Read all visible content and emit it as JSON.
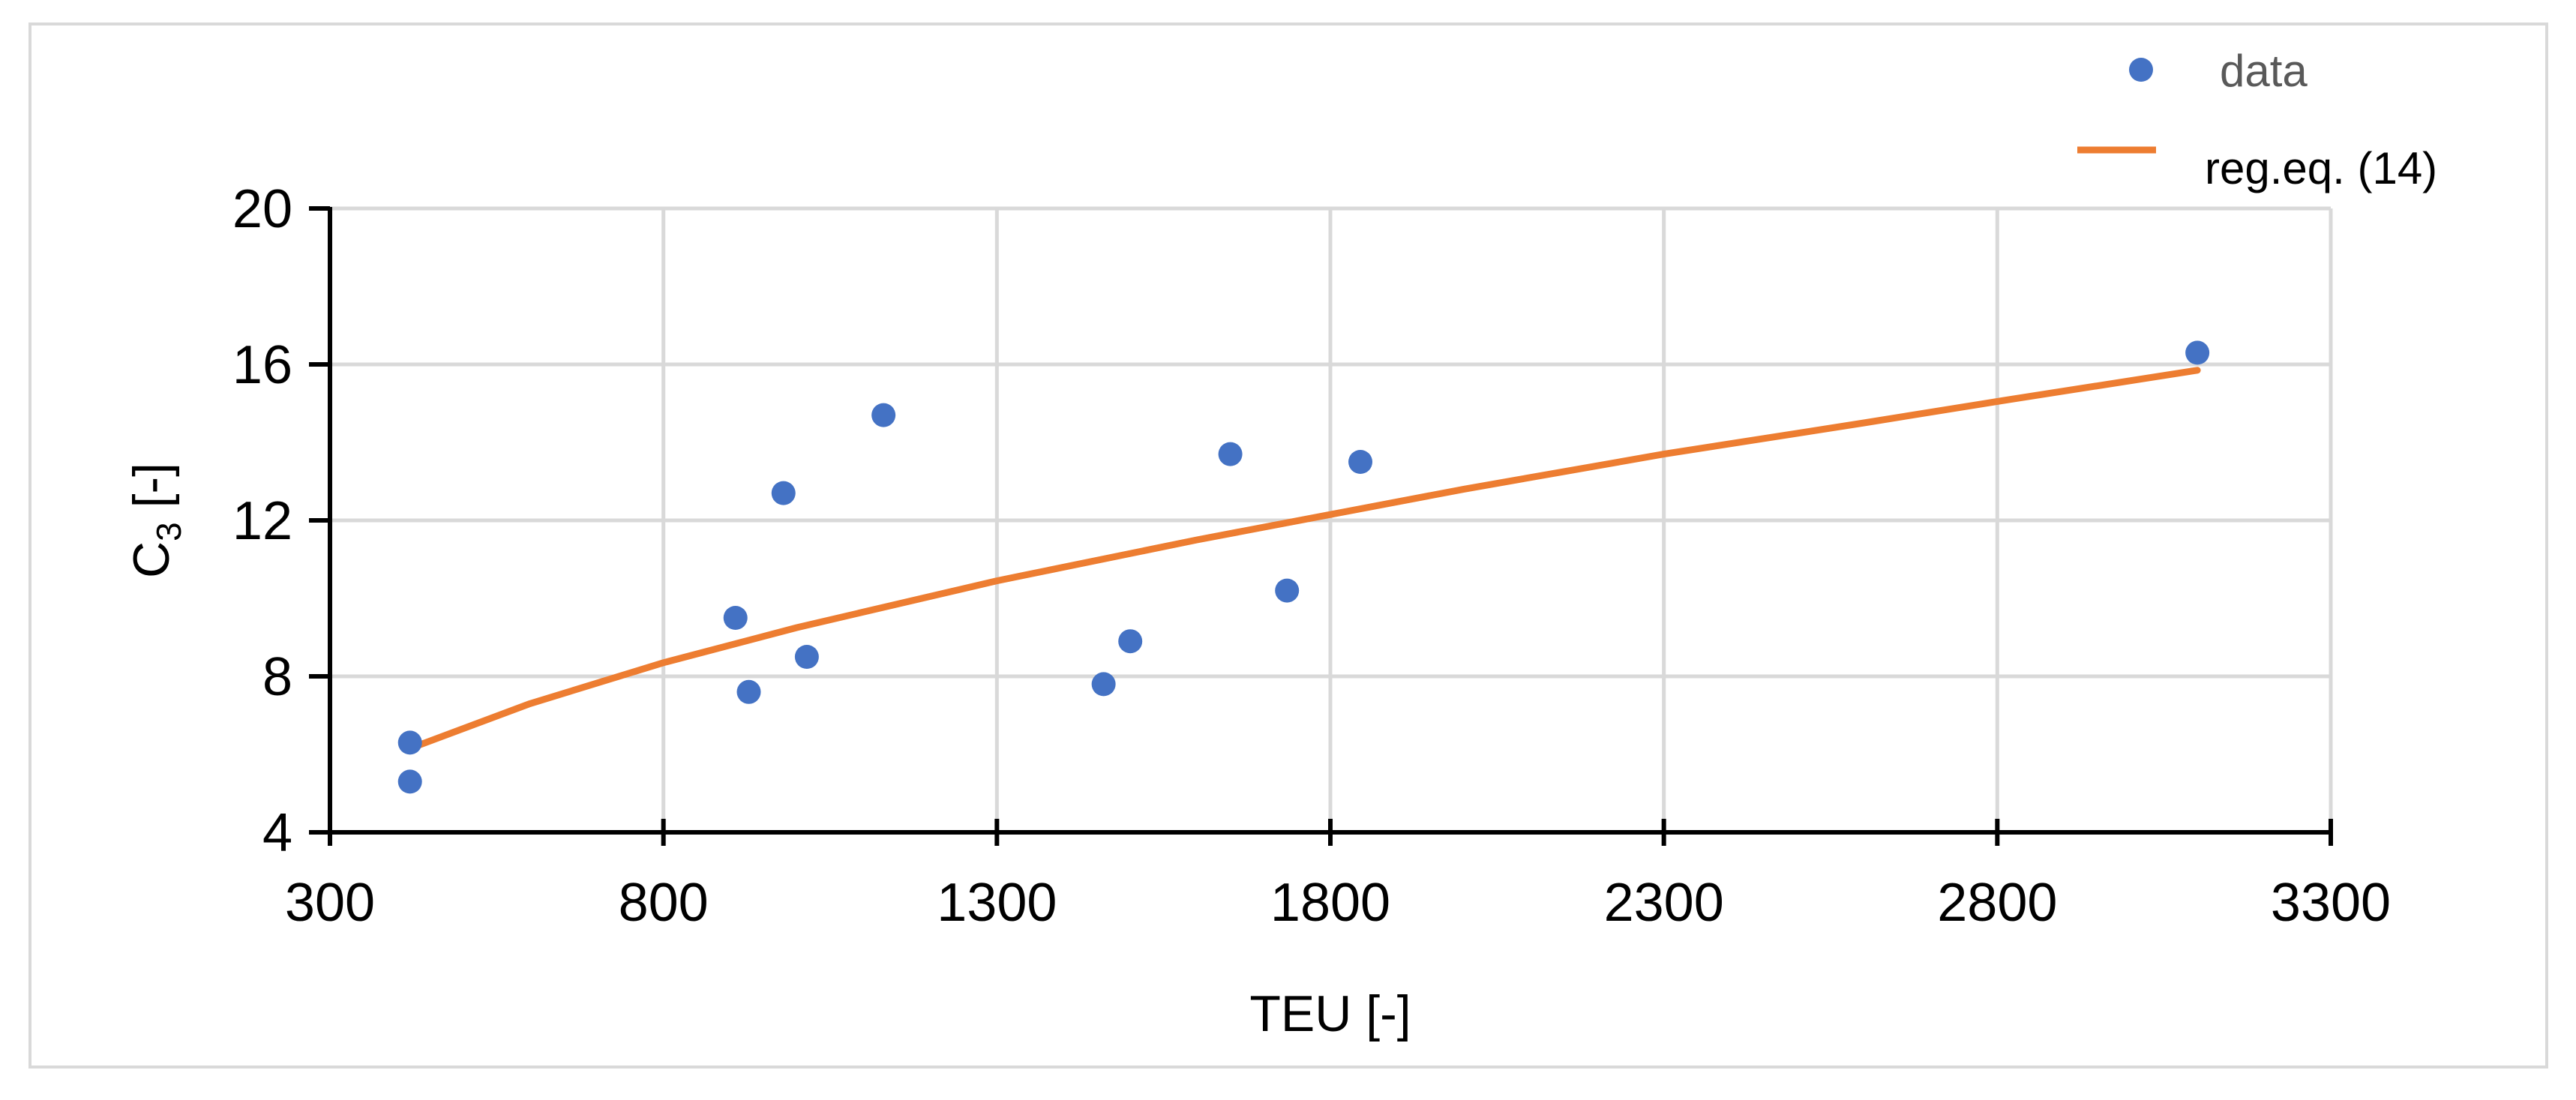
{
  "chart_data": {
    "type": "scatter",
    "xlabel": "TEU [-]",
    "ylabel": {
      "base": "C",
      "subscript": "3",
      "suffix": " [-]"
    },
    "xlim": [
      300,
      3300
    ],
    "ylim": [
      4,
      20
    ],
    "xticks": [
      300,
      800,
      1300,
      1800,
      2300,
      2800,
      3300
    ],
    "yticks": [
      4,
      8,
      12,
      16,
      20
    ],
    "grid": true,
    "legend_position": "top-right",
    "series": [
      {
        "name": "data",
        "kind": "scatter",
        "color": "#4472C4",
        "points": [
          {
            "x": 420,
            "y": 6.3
          },
          {
            "x": 420,
            "y": 5.3
          },
          {
            "x": 908,
            "y": 9.5
          },
          {
            "x": 928,
            "y": 7.6
          },
          {
            "x": 980,
            "y": 12.7
          },
          {
            "x": 1015,
            "y": 8.5
          },
          {
            "x": 1130,
            "y": 14.7
          },
          {
            "x": 1460,
            "y": 7.8
          },
          {
            "x": 1500,
            "y": 8.9
          },
          {
            "x": 1650,
            "y": 13.7
          },
          {
            "x": 1735,
            "y": 10.2
          },
          {
            "x": 1845,
            "y": 13.5
          },
          {
            "x": 3100,
            "y": 16.3
          }
        ]
      },
      {
        "name": "reg.eq. (14)",
        "kind": "line",
        "color": "#ED7D31",
        "points": [
          {
            "x": 420,
            "y": 6.15
          },
          {
            "x": 600,
            "y": 7.3
          },
          {
            "x": 800,
            "y": 8.35
          },
          {
            "x": 1000,
            "y": 9.25
          },
          {
            "x": 1300,
            "y": 10.45
          },
          {
            "x": 1600,
            "y": 11.5
          },
          {
            "x": 1800,
            "y": 12.15
          },
          {
            "x": 2000,
            "y": 12.8
          },
          {
            "x": 2300,
            "y": 13.7
          },
          {
            "x": 2600,
            "y": 14.5
          },
          {
            "x": 2800,
            "y": 15.05
          },
          {
            "x": 3100,
            "y": 15.85
          }
        ]
      }
    ]
  }
}
